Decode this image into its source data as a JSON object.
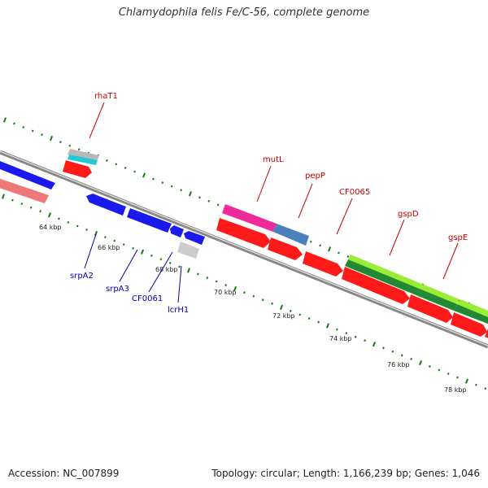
{
  "title": "Chlamydophila felis Fe/C-56, complete genome",
  "accession": "Accession: NC_007899",
  "summary": "Topology: circular; Length: 1,166,239 bp; Genes: 1,046",
  "colors": {
    "backbone": "#808080",
    "tick": "#1a7a1a",
    "forward_label": "#cc0000",
    "reverse_label": "#0000aa",
    "red": "#ff1a1a",
    "blue": "#1a1aee",
    "pink": "#ee7777",
    "magenta": "#ee2a9a",
    "steel": "#4a80bb",
    "lime": "#99ee33",
    "darkgreen": "#228833",
    "gray": "#b8b8b8",
    "cyan": "#22c8d8"
  },
  "ticks": [
    {
      "label": "64 kbp"
    },
    {
      "label": "66 kbp"
    },
    {
      "label": "68 kbp"
    },
    {
      "label": "70 kbp"
    },
    {
      "label": "72 kbp"
    },
    {
      "label": "74 kbp"
    },
    {
      "label": "76 kbp"
    },
    {
      "label": "78 kbp"
    }
  ],
  "forward_labels": [
    {
      "name": "rhaT1"
    },
    {
      "name": "mutL"
    },
    {
      "name": "pepP"
    },
    {
      "name": "CF0065"
    },
    {
      "name": "gspD"
    },
    {
      "name": "gspE"
    }
  ],
  "reverse_labels": [
    {
      "name": "srpA2"
    },
    {
      "name": "srpA3"
    },
    {
      "name": "CF0061"
    },
    {
      "name": "lcrH1"
    }
  ]
}
